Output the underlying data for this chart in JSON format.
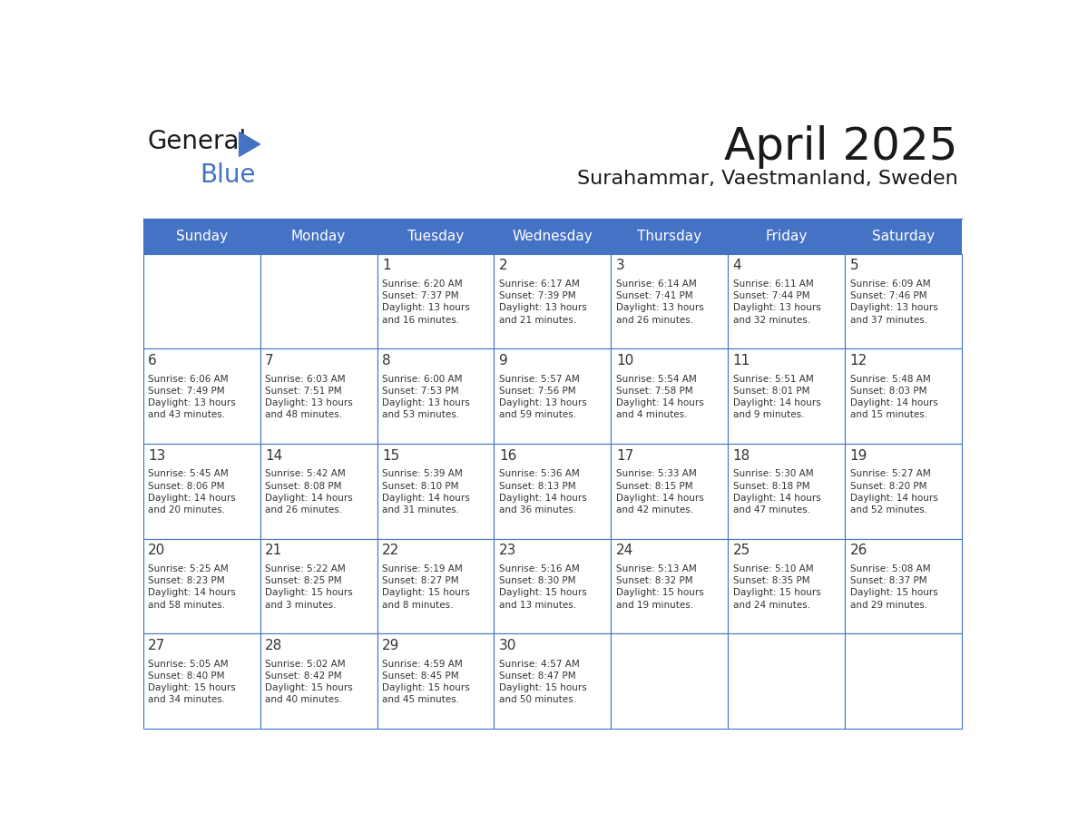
{
  "title": "April 2025",
  "subtitle": "Surahammar, Vaestmanland, Sweden",
  "header_color": "#4472C4",
  "header_text_color": "#FFFFFF",
  "background_color": "#FFFFFF",
  "border_color": "#4472C4",
  "text_color": "#333333",
  "days_of_week": [
    "Sunday",
    "Monday",
    "Tuesday",
    "Wednesday",
    "Thursday",
    "Friday",
    "Saturday"
  ],
  "weeks": [
    [
      {
        "day": "",
        "text": ""
      },
      {
        "day": "",
        "text": ""
      },
      {
        "day": "1",
        "text": "Sunrise: 6:20 AM\nSunset: 7:37 PM\nDaylight: 13 hours\nand 16 minutes."
      },
      {
        "day": "2",
        "text": "Sunrise: 6:17 AM\nSunset: 7:39 PM\nDaylight: 13 hours\nand 21 minutes."
      },
      {
        "day": "3",
        "text": "Sunrise: 6:14 AM\nSunset: 7:41 PM\nDaylight: 13 hours\nand 26 minutes."
      },
      {
        "day": "4",
        "text": "Sunrise: 6:11 AM\nSunset: 7:44 PM\nDaylight: 13 hours\nand 32 minutes."
      },
      {
        "day": "5",
        "text": "Sunrise: 6:09 AM\nSunset: 7:46 PM\nDaylight: 13 hours\nand 37 minutes."
      }
    ],
    [
      {
        "day": "6",
        "text": "Sunrise: 6:06 AM\nSunset: 7:49 PM\nDaylight: 13 hours\nand 43 minutes."
      },
      {
        "day": "7",
        "text": "Sunrise: 6:03 AM\nSunset: 7:51 PM\nDaylight: 13 hours\nand 48 minutes."
      },
      {
        "day": "8",
        "text": "Sunrise: 6:00 AM\nSunset: 7:53 PM\nDaylight: 13 hours\nand 53 minutes."
      },
      {
        "day": "9",
        "text": "Sunrise: 5:57 AM\nSunset: 7:56 PM\nDaylight: 13 hours\nand 59 minutes."
      },
      {
        "day": "10",
        "text": "Sunrise: 5:54 AM\nSunset: 7:58 PM\nDaylight: 14 hours\nand 4 minutes."
      },
      {
        "day": "11",
        "text": "Sunrise: 5:51 AM\nSunset: 8:01 PM\nDaylight: 14 hours\nand 9 minutes."
      },
      {
        "day": "12",
        "text": "Sunrise: 5:48 AM\nSunset: 8:03 PM\nDaylight: 14 hours\nand 15 minutes."
      }
    ],
    [
      {
        "day": "13",
        "text": "Sunrise: 5:45 AM\nSunset: 8:06 PM\nDaylight: 14 hours\nand 20 minutes."
      },
      {
        "day": "14",
        "text": "Sunrise: 5:42 AM\nSunset: 8:08 PM\nDaylight: 14 hours\nand 26 minutes."
      },
      {
        "day": "15",
        "text": "Sunrise: 5:39 AM\nSunset: 8:10 PM\nDaylight: 14 hours\nand 31 minutes."
      },
      {
        "day": "16",
        "text": "Sunrise: 5:36 AM\nSunset: 8:13 PM\nDaylight: 14 hours\nand 36 minutes."
      },
      {
        "day": "17",
        "text": "Sunrise: 5:33 AM\nSunset: 8:15 PM\nDaylight: 14 hours\nand 42 minutes."
      },
      {
        "day": "18",
        "text": "Sunrise: 5:30 AM\nSunset: 8:18 PM\nDaylight: 14 hours\nand 47 minutes."
      },
      {
        "day": "19",
        "text": "Sunrise: 5:27 AM\nSunset: 8:20 PM\nDaylight: 14 hours\nand 52 minutes."
      }
    ],
    [
      {
        "day": "20",
        "text": "Sunrise: 5:25 AM\nSunset: 8:23 PM\nDaylight: 14 hours\nand 58 minutes."
      },
      {
        "day": "21",
        "text": "Sunrise: 5:22 AM\nSunset: 8:25 PM\nDaylight: 15 hours\nand 3 minutes."
      },
      {
        "day": "22",
        "text": "Sunrise: 5:19 AM\nSunset: 8:27 PM\nDaylight: 15 hours\nand 8 minutes."
      },
      {
        "day": "23",
        "text": "Sunrise: 5:16 AM\nSunset: 8:30 PM\nDaylight: 15 hours\nand 13 minutes."
      },
      {
        "day": "24",
        "text": "Sunrise: 5:13 AM\nSunset: 8:32 PM\nDaylight: 15 hours\nand 19 minutes."
      },
      {
        "day": "25",
        "text": "Sunrise: 5:10 AM\nSunset: 8:35 PM\nDaylight: 15 hours\nand 24 minutes."
      },
      {
        "day": "26",
        "text": "Sunrise: 5:08 AM\nSunset: 8:37 PM\nDaylight: 15 hours\nand 29 minutes."
      }
    ],
    [
      {
        "day": "27",
        "text": "Sunrise: 5:05 AM\nSunset: 8:40 PM\nDaylight: 15 hours\nand 34 minutes."
      },
      {
        "day": "28",
        "text": "Sunrise: 5:02 AM\nSunset: 8:42 PM\nDaylight: 15 hours\nand 40 minutes."
      },
      {
        "day": "29",
        "text": "Sunrise: 4:59 AM\nSunset: 8:45 PM\nDaylight: 15 hours\nand 45 minutes."
      },
      {
        "day": "30",
        "text": "Sunrise: 4:57 AM\nSunset: 8:47 PM\nDaylight: 15 hours\nand 50 minutes."
      },
      {
        "day": "",
        "text": ""
      },
      {
        "day": "",
        "text": ""
      },
      {
        "day": "",
        "text": ""
      }
    ]
  ],
  "logo_general_color": "#1a1a1a",
  "logo_blue_color": "#4472C4"
}
